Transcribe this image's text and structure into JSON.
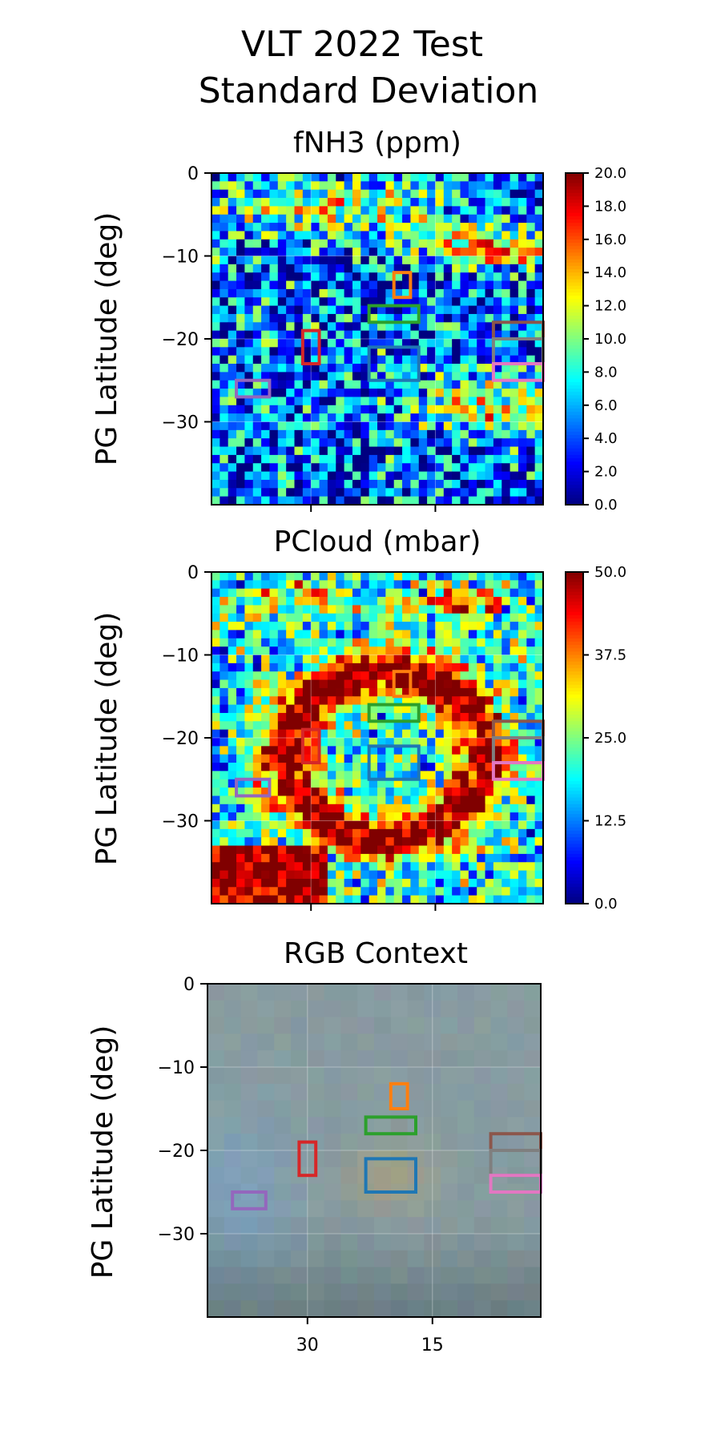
{
  "figure": {
    "title_line1": "VLT 2022 Test",
    "title_line2": "Standard Deviation"
  },
  "chart_data": [
    {
      "type": "heatmap",
      "title": "fNH3 (ppm)",
      "ylabel": "PG Latitude (deg)",
      "xlabel": "",
      "colormap": "jet",
      "vmin": 0.0,
      "vmax": 20.0,
      "colorbar_ticks": [
        "0.0",
        "2.0",
        "4.0",
        "6.0",
        "8.0",
        "10.0",
        "12.0",
        "14.0",
        "16.0",
        "18.0",
        "20.0"
      ],
      "xlim": [
        42,
        2
      ],
      "ylim": [
        -40,
        0
      ],
      "yticks": [
        "0",
        "−10",
        "−20",
        "−30"
      ],
      "xticks": [
        "",
        ""
      ],
      "grid": true
    },
    {
      "type": "heatmap",
      "title": "PCloud (mbar)",
      "ylabel": "PG Latitude (deg)",
      "xlabel": "",
      "colormap": "jet",
      "vmin": 0.0,
      "vmax": 50.0,
      "colorbar_ticks": [
        "0.0",
        "12.5",
        "25.0",
        "37.5",
        "50.0"
      ],
      "xlim": [
        42,
        2
      ],
      "ylim": [
        -40,
        0
      ],
      "yticks": [
        "0",
        "−10",
        "−20",
        "−30"
      ],
      "xticks": [
        "",
        ""
      ],
      "grid": true
    },
    {
      "type": "heatmap",
      "title": "RGB Context",
      "ylabel": "PG Latitude (deg)",
      "xlabel": "",
      "xlim": [
        42,
        2
      ],
      "ylim": [
        -40,
        0
      ],
      "yticks": [
        "0",
        "−10",
        "−20",
        "−30"
      ],
      "xticks": [
        "30",
        "15"
      ],
      "grid": true
    }
  ],
  "regions": [
    {
      "color": "#ff7f0e",
      "lon": [
        20,
        18
      ],
      "lat": [
        -15,
        -12
      ]
    },
    {
      "color": "#2ca02c",
      "lon": [
        23,
        17
      ],
      "lat": [
        -18,
        -16
      ]
    },
    {
      "color": "#1f77b4",
      "lon": [
        23,
        17
      ],
      "lat": [
        -25,
        -21
      ]
    },
    {
      "color": "#d62728",
      "lon": [
        31,
        29
      ],
      "lat": [
        -23,
        -19
      ]
    },
    {
      "color": "#9467bd",
      "lon": [
        39,
        35
      ],
      "lat": [
        -27,
        -25
      ]
    },
    {
      "color": "#8c564b",
      "lon": [
        8,
        2
      ],
      "lat": [
        -20,
        -18
      ]
    },
    {
      "color": "#7f7f7f",
      "lon": [
        8,
        2
      ],
      "lat": [
        -23,
        -20
      ]
    },
    {
      "color": "#e377c2",
      "lon": [
        8,
        2
      ],
      "lat": [
        -25,
        -23
      ]
    }
  ]
}
